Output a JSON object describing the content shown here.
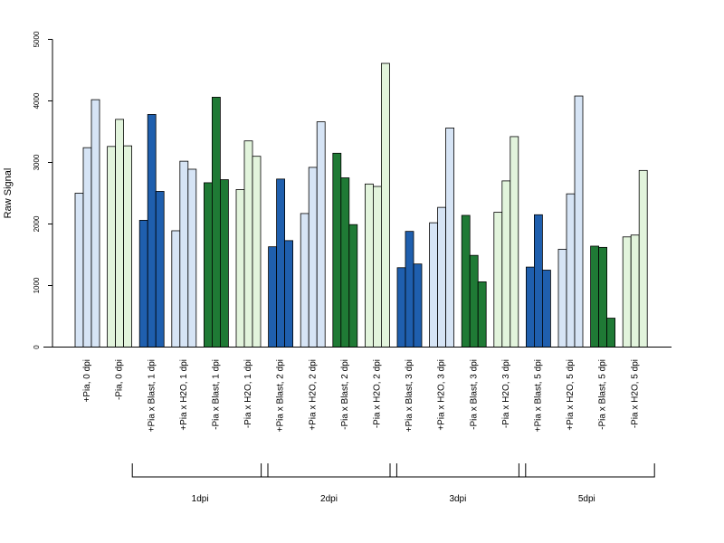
{
  "chart_data": {
    "type": "bar",
    "ylabel": "Raw Signal",
    "ylim": [
      0,
      5000
    ],
    "yticks": [
      "0",
      "1000",
      "2000",
      "3000",
      "4000",
      "5000"
    ],
    "bars_per_category": 3,
    "colors": {
      "plus_h2o": "#d6e4f5",
      "minus_h2o": "#e2f4dc",
      "plus_blast": "#1f5fae",
      "minus_blast": "#1f7a35",
      "stroke": "#000000"
    },
    "categories": [
      {
        "label": "+Pia, 0 dpi",
        "color": "plus_h2o",
        "values": [
          2500,
          3240,
          4020
        ]
      },
      {
        "label": "-Pia, 0 dpi",
        "color": "minus_h2o",
        "values": [
          3260,
          3700,
          3270
        ]
      },
      {
        "label": "+Pia x Blast, 1 dpi",
        "color": "plus_blast",
        "values": [
          2060,
          3780,
          2530
        ]
      },
      {
        "label": "+Pia x H2O, 1 dpi",
        "color": "plus_h2o",
        "values": [
          1890,
          3020,
          2890
        ]
      },
      {
        "label": "-Pia x Blast, 1 dpi",
        "color": "minus_blast",
        "values": [
          2670,
          4060,
          2720
        ]
      },
      {
        "label": "-Pia x H2O, 1 dpi",
        "color": "minus_h2o",
        "values": [
          2560,
          3350,
          3100
        ]
      },
      {
        "label": "+Pia x Blast, 2 dpi",
        "color": "plus_blast",
        "values": [
          1630,
          2730,
          1730
        ]
      },
      {
        "label": "+Pia x H2O, 2 dpi",
        "color": "plus_h2o",
        "values": [
          2170,
          2920,
          3660
        ]
      },
      {
        "label": "-Pia x Blast, 2 dpi",
        "color": "minus_blast",
        "values": [
          3150,
          2750,
          1990
        ]
      },
      {
        "label": "-Pia x H2O, 2 dpi",
        "color": "minus_h2o",
        "values": [
          2650,
          2610,
          4610
        ]
      },
      {
        "label": "+Pia x Blast, 3 dpi",
        "color": "plus_blast",
        "values": [
          1290,
          1880,
          1350
        ]
      },
      {
        "label": "+Pia x H2O, 3 dpi",
        "color": "plus_h2o",
        "values": [
          2020,
          2270,
          3560
        ]
      },
      {
        "label": "-Pia x Blast, 3 dpi",
        "color": "minus_blast",
        "values": [
          2140,
          1490,
          1060
        ]
      },
      {
        "label": "-Pia x H2O, 3 dpi",
        "color": "minus_h2o",
        "values": [
          2190,
          2700,
          3420
        ]
      },
      {
        "label": "+Pia x Blast, 5 dpi",
        "color": "plus_blast",
        "values": [
          1300,
          2150,
          1250
        ]
      },
      {
        "label": "+Pia x H2O, 5 dpi",
        "color": "plus_h2o",
        "values": [
          1590,
          2490,
          4080
        ]
      },
      {
        "label": "-Pia x Blast, 5 dpi",
        "color": "minus_blast",
        "values": [
          1640,
          1620,
          470
        ]
      },
      {
        "label": "-Pia x H2O, 5 dpi",
        "color": "minus_h2o",
        "values": [
          1790,
          1820,
          2870
        ]
      }
    ],
    "groups": [
      {
        "label": "1dpi",
        "first_category": 2,
        "last_category": 5
      },
      {
        "label": "2dpi",
        "first_category": 6,
        "last_category": 9
      },
      {
        "label": "3dpi",
        "first_category": 10,
        "last_category": 13
      },
      {
        "label": "5dpi",
        "first_category": 14,
        "last_category": 17
      }
    ]
  }
}
